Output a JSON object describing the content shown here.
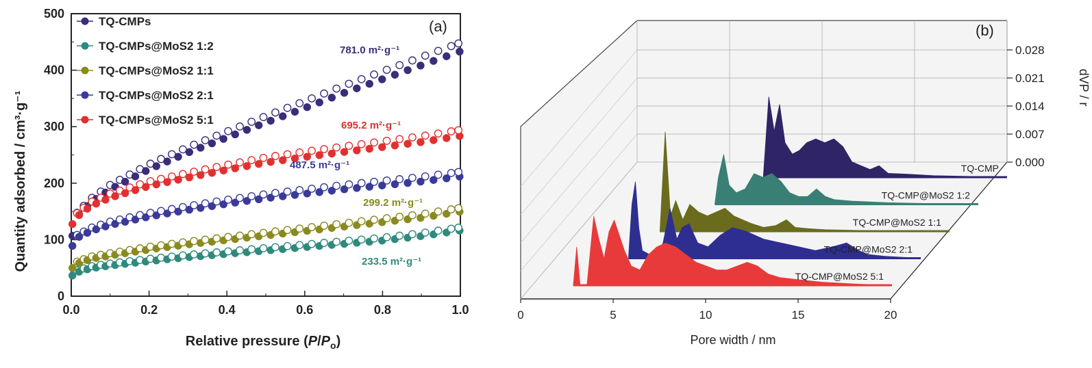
{
  "chart_data": [
    {
      "type": "scatter",
      "panel_tag": "(a)",
      "xlabel_prefix": "Relative pressure (",
      "xlabel_p": "P",
      "xlabel_slash": "/",
      "xlabel_po": "P",
      "xlabel_o": "o",
      "xlabel_suffix": ")",
      "ylabel": "Quantity adsorbed / cm³·g⁻¹",
      "xlim": [
        0,
        1.0
      ],
      "ylim": [
        0,
        500
      ],
      "xticks": [
        "0.0",
        "0.2",
        "0.4",
        "0.6",
        "0.8",
        "1.0"
      ],
      "yticks": [
        "0",
        "100",
        "200",
        "300",
        "400",
        "500"
      ],
      "legend_position": "top-left",
      "series": [
        {
          "name": "TQ-CMPs",
          "color": "#3b2d7a",
          "annotation": "781.0 m²·g⁻¹",
          "x": [
            0.0,
            0.01,
            0.05,
            0.1,
            0.2,
            0.3,
            0.4,
            0.5,
            0.6,
            0.7,
            0.8,
            0.9,
            1.0
          ],
          "y": [
            95,
            140,
            168,
            192,
            228,
            258,
            285,
            312,
            338,
            365,
            390,
            415,
            440
          ]
        },
        {
          "name": "TQ-CMPs@MoS₂ 1:2",
          "color": "#2f8a7d",
          "annotation": "233.5 m²·g⁻¹",
          "x": [
            0.0,
            0.01,
            0.05,
            0.1,
            0.2,
            0.3,
            0.4,
            0.5,
            0.6,
            0.7,
            0.8,
            0.9,
            1.0
          ],
          "y": [
            35,
            42,
            50,
            55,
            63,
            70,
            76,
            82,
            88,
            94,
            100,
            108,
            118
          ]
        },
        {
          "name": "TQ-CMPs@MoS₂ 1:1",
          "color": "#8a8a20",
          "annotation": "299.2 m²·g⁻¹",
          "x": [
            0.0,
            0.01,
            0.05,
            0.1,
            0.2,
            0.3,
            0.4,
            0.5,
            0.6,
            0.7,
            0.8,
            0.9,
            1.0
          ],
          "y": [
            48,
            57,
            67,
            73,
            84,
            93,
            101,
            109,
            117,
            125,
            133,
            141,
            152
          ]
        },
        {
          "name": "TQ-CMPs@MoS₂ 2:1",
          "color": "#3a3a9a",
          "annotation": "487.5 m²·g⁻¹",
          "x": [
            0.0,
            0.01,
            0.05,
            0.1,
            0.2,
            0.3,
            0.4,
            0.5,
            0.6,
            0.7,
            0.8,
            0.9,
            1.0
          ],
          "y": [
            85,
            103,
            117,
            128,
            143,
            155,
            166,
            176,
            184,
            192,
            199,
            206,
            215
          ]
        },
        {
          "name": "TQ-CMPs@MoS₂ 5:1",
          "color": "#e23030",
          "annotation": "695.2 m²·g⁻¹",
          "x": [
            0.0,
            0.01,
            0.05,
            0.1,
            0.2,
            0.3,
            0.4,
            0.5,
            0.6,
            0.7,
            0.8,
            0.9,
            1.0
          ],
          "y": [
            125,
            140,
            162,
            177,
            198,
            213,
            227,
            240,
            250,
            259,
            268,
            277,
            288
          ]
        }
      ]
    },
    {
      "type": "area",
      "panel_tag": "(b)",
      "xlabel": "Pore width / nm",
      "zlabel": "dVP / r",
      "xlim": [
        0,
        20
      ],
      "xticks": [
        "0",
        "5",
        "10",
        "15",
        "20"
      ],
      "zticks": [
        "0.000",
        "0.007",
        "0.014",
        "0.021",
        "0.028"
      ],
      "series": [
        {
          "name": "TQ-CMP",
          "color": "#2e2466",
          "x": [
            6.6,
            6.9,
            7.2,
            7.5,
            7.8,
            8.2,
            8.6,
            9.0,
            9.5,
            10.0,
            10.5,
            11.0,
            11.5,
            12.0,
            12.5,
            13.0,
            13.5,
            14.5,
            16.0,
            18.0,
            20.0
          ],
          "y": [
            0.0,
            0.021,
            0.012,
            0.019,
            0.009,
            0.006,
            0.007,
            0.009,
            0.01,
            0.009,
            0.01,
            0.008,
            0.004,
            0.003,
            0.002,
            0.003,
            0.001,
            0.0008,
            0.0004,
            0.0002,
            0.0
          ]
        },
        {
          "name": "TQ-CMP@MoS₂ 1:2",
          "color": "#3a7f75",
          "x": [
            5.3,
            5.5,
            5.8,
            6.1,
            6.5,
            7.0,
            7.5,
            8.0,
            8.5,
            9.0,
            9.5,
            10.0,
            10.5,
            11.0,
            11.5,
            12.0,
            13.0,
            15.0,
            17.0,
            20.0
          ],
          "y": [
            0.0,
            0.007,
            0.013,
            0.005,
            0.003,
            0.004,
            0.008,
            0.007,
            0.008,
            0.006,
            0.003,
            0.002,
            0.002,
            0.004,
            0.002,
            0.0012,
            0.0008,
            0.0004,
            0.0002,
            0.0
          ]
        },
        {
          "name": "TQ-CMP@MoS₂ 1:1",
          "color": "#6b6b1e",
          "x": [
            3.6,
            3.9,
            4.2,
            4.5,
            4.9,
            5.3,
            5.8,
            6.3,
            6.8,
            7.3,
            7.8,
            8.3,
            8.8,
            9.5,
            10.2,
            10.8,
            11.3,
            12.0,
            13.0,
            15.0,
            18.0,
            20.0
          ],
          "y": [
            0.0,
            0.026,
            0.004,
            0.008,
            0.003,
            0.007,
            0.005,
            0.004,
            0.005,
            0.006,
            0.004,
            0.003,
            0.002,
            0.001,
            0.0015,
            0.003,
            0.001,
            0.0007,
            0.0004,
            0.0002,
            0.0001,
            0.0
          ]
        },
        {
          "name": "TQ-CMP@MoS₂ 2:1",
          "color": "#2e2e90",
          "x": [
            3.2,
            3.4,
            3.6,
            3.8,
            4.0,
            4.4,
            4.8,
            5.2,
            5.6,
            6.0,
            6.3,
            6.7,
            7.2,
            7.8,
            8.5,
            9.2,
            10.0,
            11.0,
            12.0,
            13.0,
            14.0,
            15.0,
            15.8,
            16.5,
            17.0,
            18.0,
            20.0
          ],
          "y": [
            0.0,
            0.014,
            0.02,
            0.008,
            0.002,
            0.001,
            0.0,
            0.004,
            0.013,
            0.005,
            0.008,
            0.009,
            0.004,
            0.003,
            0.006,
            0.008,
            0.007,
            0.005,
            0.004,
            0.003,
            0.002,
            0.003,
            0.004,
            0.002,
            0.001,
            0.0005,
            0.0
          ]
        },
        {
          "name": "TQ-CMP@MoS₂ 5:1",
          "color": "#e83a3a",
          "x": [
            1.4,
            1.6,
            1.8,
            2.0,
            2.2,
            2.6,
            2.9,
            3.2,
            3.5,
            3.8,
            4.1,
            4.4,
            4.8,
            5.3,
            5.8,
            6.3,
            6.8,
            7.4,
            8.0,
            8.6,
            9.2,
            9.8,
            10.4,
            11.0,
            11.6,
            12.2,
            12.8,
            13.5,
            14.5,
            16.0,
            18.0,
            20.0
          ],
          "y": [
            0.0,
            0.01,
            0.0,
            0.0,
            0.0,
            0.018,
            0.012,
            0.007,
            0.014,
            0.017,
            0.013,
            0.009,
            0.005,
            0.004,
            0.008,
            0.01,
            0.011,
            0.01,
            0.008,
            0.006,
            0.005,
            0.004,
            0.004,
            0.005,
            0.006,
            0.005,
            0.003,
            0.002,
            0.0015,
            0.0008,
            0.0003,
            0.0
          ]
        }
      ]
    }
  ]
}
